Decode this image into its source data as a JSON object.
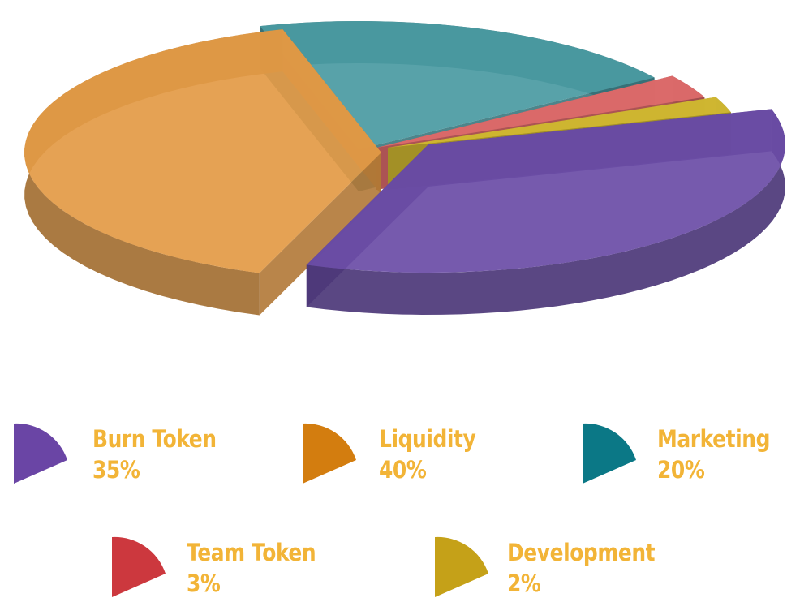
{
  "chart_data": {
    "type": "pie",
    "labels": [
      "Burn Token",
      "Liquidity",
      "Marketing",
      "Team Token",
      "Development"
    ],
    "values": [
      35,
      40,
      20,
      3,
      2
    ],
    "value_labels": [
      "35%",
      "40%",
      "20%",
      "3%",
      "2%"
    ],
    "colors": [
      "#6a4ca6",
      "#e39a45",
      "#4a9aa2",
      "#de6a6a",
      "#d1b931"
    ],
    "legend_colors": [
      "#6a45a5",
      "#d37d0f",
      "#0b7886",
      "#cc383e",
      "#c5a118"
    ],
    "legend_position": "bottom",
    "style": "3d-exploded"
  }
}
